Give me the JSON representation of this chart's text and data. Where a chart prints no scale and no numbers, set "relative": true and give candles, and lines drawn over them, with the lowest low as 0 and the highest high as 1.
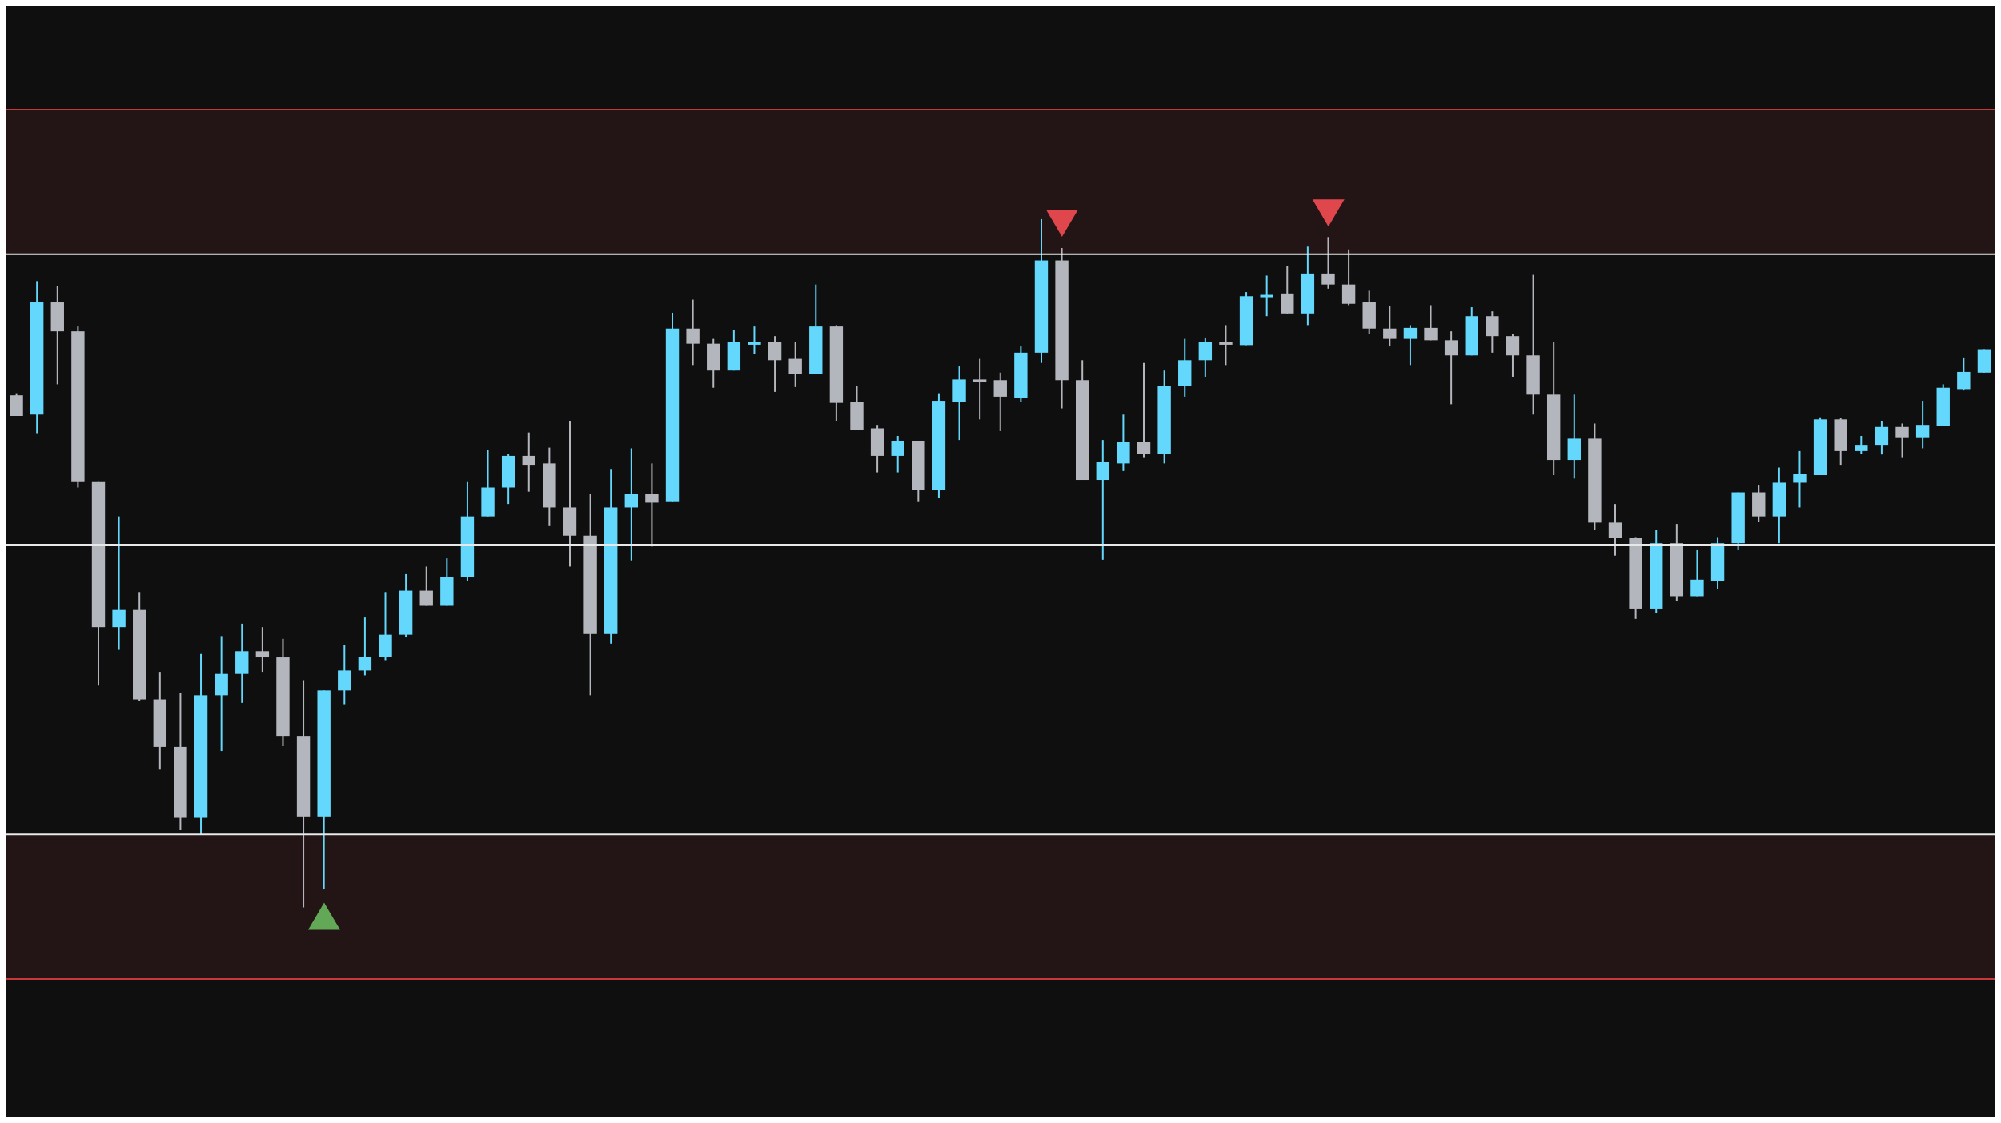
{
  "chart_data": {
    "type": "candlestick",
    "relative": true,
    "categories": [
      null,
      null,
      null,
      null,
      null,
      null,
      null,
      null,
      null,
      null,
      null,
      null,
      null,
      null,
      null,
      null,
      null,
      null,
      null,
      null,
      null,
      null,
      null,
      null,
      null,
      null,
      null,
      null,
      null,
      null,
      null,
      null,
      null,
      null,
      null,
      null,
      null,
      null,
      null,
      null,
      null,
      null,
      null,
      null,
      null,
      null,
      null,
      null,
      null,
      null,
      null,
      null,
      null,
      null,
      null,
      null,
      null,
      null,
      null,
      null,
      null,
      null,
      null,
      null,
      null,
      null,
      null,
      null,
      null,
      null,
      null,
      null,
      null,
      null,
      null,
      null,
      null,
      null,
      null,
      null,
      null,
      null,
      null,
      null,
      null,
      null,
      null,
      null,
      null,
      null,
      null,
      null,
      null,
      null,
      null,
      null,
      null
    ],
    "ohlc": [
      [
        0.744,
        0.747,
        0.714,
        0.714
      ],
      [
        0.716,
        0.91,
        0.689,
        0.879
      ],
      [
        0.879,
        0.903,
        0.76,
        0.837
      ],
      [
        0.837,
        0.844,
        0.61,
        0.619
      ],
      [
        0.619,
        0.619,
        0.322,
        0.407
      ],
      [
        0.407,
        0.568,
        0.374,
        0.432
      ],
      [
        0.432,
        0.458,
        0.3,
        0.302
      ],
      [
        0.302,
        0.342,
        0.2,
        0.233
      ],
      [
        0.233,
        0.311,
        0.112,
        0.13
      ],
      [
        0.13,
        0.368,
        0.106,
        0.308
      ],
      [
        0.308,
        0.394,
        0.227,
        0.339
      ],
      [
        0.339,
        0.412,
        0.297,
        0.372
      ],
      [
        0.372,
        0.407,
        0.342,
        0.363
      ],
      [
        0.363,
        0.39,
        0.234,
        0.249
      ],
      [
        0.249,
        0.33,
        0,
        0.132
      ],
      [
        0.132,
        0.315,
        0.026,
        0.315
      ],
      [
        0.315,
        0.381,
        0.295,
        0.344
      ],
      [
        0.344,
        0.421,
        0.337,
        0.364
      ],
      [
        0.364,
        0.458,
        0.359,
        0.396
      ],
      [
        0.396,
        0.484,
        0.392,
        0.46
      ],
      [
        0.46,
        0.495,
        0.438,
        0.438
      ],
      [
        0.438,
        0.507,
        0.438,
        0.48
      ],
      [
        0.48,
        0.619,
        0.474,
        0.568
      ],
      [
        0.568,
        0.665,
        0.568,
        0.61
      ],
      [
        0.61,
        0.659,
        0.586,
        0.656
      ],
      [
        0.656,
        0.69,
        0.604,
        0.643
      ],
      [
        0.645,
        0.668,
        0.555,
        0.581
      ],
      [
        0.581,
        0.707,
        0.495,
        0.54
      ],
      [
        0.54,
        0.601,
        0.308,
        0.397
      ],
      [
        0.397,
        0.637,
        0.383,
        0.581
      ],
      [
        0.581,
        0.667,
        0.504,
        0.601
      ],
      [
        0.601,
        0.645,
        0.524,
        0.588
      ],
      [
        0.59,
        0.864,
        0.59,
        0.841
      ],
      [
        0.841,
        0.883,
        0.788,
        0.819
      ],
      [
        0.819,
        0.826,
        0.755,
        0.78
      ],
      [
        0.78,
        0.839,
        0.78,
        0.821
      ],
      [
        0.819,
        0.844,
        0.804,
        0.821
      ],
      [
        0.821,
        0.83,
        0.749,
        0.795
      ],
      [
        0.797,
        0.822,
        0.756,
        0.775
      ],
      [
        0.775,
        0.905,
        0.775,
        0.844
      ],
      [
        0.844,
        0.846,
        0.707,
        0.733
      ],
      [
        0.734,
        0.758,
        0.694,
        0.694
      ],
      [
        0.696,
        0.701,
        0.632,
        0.656
      ],
      [
        0.656,
        0.685,
        0.632,
        0.678
      ],
      [
        0.678,
        0.678,
        0.59,
        0.606
      ],
      [
        0.606,
        0.747,
        0.595,
        0.736
      ],
      [
        0.734,
        0.786,
        0.679,
        0.767
      ],
      [
        0.767,
        0.797,
        0.709,
        0.766
      ],
      [
        0.766,
        0.777,
        0.692,
        0.742
      ],
      [
        0.74,
        0.815,
        0.734,
        0.806
      ],
      [
        0.806,
        1,
        0.791,
        0.94
      ],
      [
        0.94,
        0.958,
        0.725,
        0.766
      ],
      [
        0.766,
        0.795,
        0.621,
        0.621
      ],
      [
        0.621,
        0.679,
        0.505,
        0.647
      ],
      [
        0.645,
        0.716,
        0.634,
        0.676
      ],
      [
        0.676,
        0.791,
        0.654,
        0.659
      ],
      [
        0.659,
        0.78,
        0.645,
        0.758
      ],
      [
        0.758,
        0.826,
        0.742,
        0.795
      ],
      [
        0.795,
        0.828,
        0.771,
        0.821
      ],
      [
        0.821,
        0.846,
        0.788,
        0.819
      ],
      [
        0.817,
        0.894,
        0.817,
        0.888
      ],
      [
        0.888,
        0.918,
        0.859,
        0.89
      ],
      [
        0.892,
        0.932,
        0.863,
        0.863
      ],
      [
        0.863,
        0.96,
        0.846,
        0.921
      ],
      [
        0.921,
        0.974,
        0.899,
        0.905
      ],
      [
        0.905,
        0.956,
        0.875,
        0.877
      ],
      [
        0.879,
        0.896,
        0.833,
        0.841
      ],
      [
        0.841,
        0.874,
        0.815,
        0.826
      ],
      [
        0.826,
        0.846,
        0.788,
        0.842
      ],
      [
        0.842,
        0.875,
        0.824,
        0.824
      ],
      [
        0.824,
        0.837,
        0.731,
        0.802
      ],
      [
        0.802,
        0.872,
        0.802,
        0.859
      ],
      [
        0.859,
        0.866,
        0.806,
        0.83
      ],
      [
        0.83,
        0.833,
        0.771,
        0.802
      ],
      [
        0.802,
        0.919,
        0.716,
        0.745
      ],
      [
        0.745,
        0.821,
        0.628,
        0.65
      ],
      [
        0.65,
        0.745,
        0.623,
        0.681
      ],
      [
        0.681,
        0.703,
        0.548,
        0.559
      ],
      [
        0.559,
        0.586,
        0.511,
        0.537
      ],
      [
        0.537,
        0.538,
        0.419,
        0.434
      ],
      [
        0.434,
        0.548,
        0.427,
        0.529
      ],
      [
        0.529,
        0.557,
        0.445,
        0.452
      ],
      [
        0.452,
        0.52,
        0.452,
        0.476
      ],
      [
        0.474,
        0.538,
        0.463,
        0.529
      ],
      [
        0.529,
        0.603,
        0.52,
        0.603
      ],
      [
        0.603,
        0.614,
        0.56,
        0.568
      ],
      [
        0.568,
        0.639,
        0.529,
        0.617
      ],
      [
        0.617,
        0.663,
        0.581,
        0.63
      ],
      [
        0.628,
        0.712,
        0.628,
        0.709
      ],
      [
        0.709,
        0.711,
        0.643,
        0.663
      ],
      [
        0.663,
        0.685,
        0.659,
        0.672
      ],
      [
        0.672,
        0.707,
        0.658,
        0.698
      ],
      [
        0.698,
        0.703,
        0.654,
        0.683
      ],
      [
        0.683,
        0.736,
        0.667,
        0.701
      ],
      [
        0.7,
        0.76,
        0.7,
        0.755
      ],
      [
        0.753,
        0.799,
        0.751,
        0.778
      ],
      [
        0.777,
        0.811,
        0.777,
        0.811
      ]
    ],
    "colors": [
      "#b4b6bd",
      "#63d8fc",
      "#b4b6bd",
      "#b4b6bd",
      "#b4b6bd",
      "#63d8fc",
      "#b4b6bd",
      "#b4b6bd",
      "#b4b6bd",
      "#63d8fc",
      "#63d8fc",
      "#63d8fc",
      "#b4b6bd",
      "#b4b6bd",
      "#b4b6bd",
      "#63d8fc",
      "#63d8fc",
      "#63d8fc",
      "#63d8fc",
      "#63d8fc",
      "#b4b6bd",
      "#63d8fc",
      "#63d8fc",
      "#63d8fc",
      "#63d8fc",
      "#b4b6bd",
      "#b4b6bd",
      "#b4b6bd",
      "#b4b6bd",
      "#63d8fc",
      "#63d8fc",
      "#b4b6bd",
      "#63d8fc",
      "#b4b6bd",
      "#b4b6bd",
      "#63d8fc",
      "#63d8fc",
      "#b4b6bd",
      "#b4b6bd",
      "#63d8fc",
      "#b4b6bd",
      "#b4b6bd",
      "#b4b6bd",
      "#63d8fc",
      "#b4b6bd",
      "#63d8fc",
      "#63d8fc",
      "#b4b6bd",
      "#b4b6bd",
      "#63d8fc",
      "#63d8fc",
      "#b4b6bd",
      "#b4b6bd",
      "#63d8fc",
      "#63d8fc",
      "#b4b6bd",
      "#63d8fc",
      "#63d8fc",
      "#63d8fc",
      "#b4b6bd",
      "#63d8fc",
      "#63d8fc",
      "#b4b6bd",
      "#63d8fc",
      "#b4b6bd",
      "#b4b6bd",
      "#b4b6bd",
      "#b4b6bd",
      "#63d8fc",
      "#b4b6bd",
      "#b4b6bd",
      "#63d8fc",
      "#b4b6bd",
      "#b4b6bd",
      "#b4b6bd",
      "#b4b6bd",
      "#63d8fc",
      "#b4b6bd",
      "#b4b6bd",
      "#b4b6bd",
      "#63d8fc",
      "#b4b6bd",
      "#63d8fc",
      "#63d8fc",
      "#63d8fc",
      "#b4b6bd",
      "#63d8fc",
      "#63d8fc",
      "#63d8fc",
      "#b4b6bd",
      "#63d8fc",
      "#63d8fc",
      "#b4b6bd",
      "#63d8fc",
      "#63d8fc",
      "#63d8fc",
      "#63d8fc"
    ],
    "series": [
      {
        "type": "scatter",
        "color": "#e0474c",
        "marker": "triangle",
        "values": [
          null,
          null,
          null,
          null,
          null,
          null,
          null,
          null,
          null,
          null,
          null,
          null,
          null,
          null,
          null,
          null,
          null,
          null,
          null,
          null,
          null,
          null,
          null,
          null,
          null,
          null,
          null,
          null,
          null,
          null,
          null,
          null,
          null,
          null,
          null,
          null,
          null,
          null,
          null,
          null,
          null,
          null,
          null,
          null,
          null,
          null,
          null,
          null,
          null,
          null,
          null,
          0.994,
          null,
          null,
          null,
          null,
          null,
          null,
          null,
          null,
          null,
          null,
          null,
          null,
          1.009,
          null,
          null,
          null,
          null,
          null,
          null,
          null,
          null,
          null,
          null,
          null,
          null,
          null,
          null,
          null,
          null,
          null,
          null,
          null,
          null,
          null,
          null,
          null,
          null,
          null,
          null,
          null,
          null,
          null,
          null,
          null,
          null
        ]
      },
      {
        "type": "scatter",
        "color": "#62a857",
        "marker": "triangle",
        "values": [
          null,
          null,
          null,
          null,
          null,
          null,
          null,
          null,
          null,
          null,
          null,
          null,
          null,
          null,
          null,
          -0.013,
          null,
          null,
          null,
          null,
          null,
          null,
          null,
          null,
          null,
          null,
          null,
          null,
          null,
          null,
          null,
          null,
          null,
          null,
          null,
          null,
          null,
          null,
          null,
          null,
          null,
          null,
          null,
          null,
          null,
          null,
          null,
          null,
          null,
          null,
          null,
          null,
          null,
          null,
          null,
          null,
          null,
          null,
          null,
          null,
          null,
          null,
          null,
          null,
          null,
          null,
          null,
          null,
          null,
          null,
          null,
          null,
          null,
          null,
          null,
          null,
          null,
          null,
          null,
          null,
          null,
          null,
          null,
          null,
          null,
          null,
          null,
          null,
          null,
          null,
          null,
          null,
          null,
          null,
          null,
          null,
          null
        ]
      }
    ],
    "bands": [
      {
        "axis": "y",
        "from": 0.949,
        "to": 1.159,
        "color": "#231515"
      },
      {
        "axis": "y",
        "from": -0.104,
        "to": 0.106,
        "color": "#231515"
      }
    ],
    "ref_lines": [
      {
        "axis": "y",
        "value": 0.949,
        "color": "#e8e8e8"
      },
      {
        "axis": "y",
        "value": 0.527,
        "color": "#e8e8e8"
      },
      {
        "axis": "y",
        "value": 0.106,
        "color": "#e8e8e8"
      },
      {
        "axis": "y",
        "value": 1.159,
        "color": "#c8383b"
      },
      {
        "axis": "y",
        "value": -0.104,
        "color": "#c8383b"
      }
    ]
  }
}
